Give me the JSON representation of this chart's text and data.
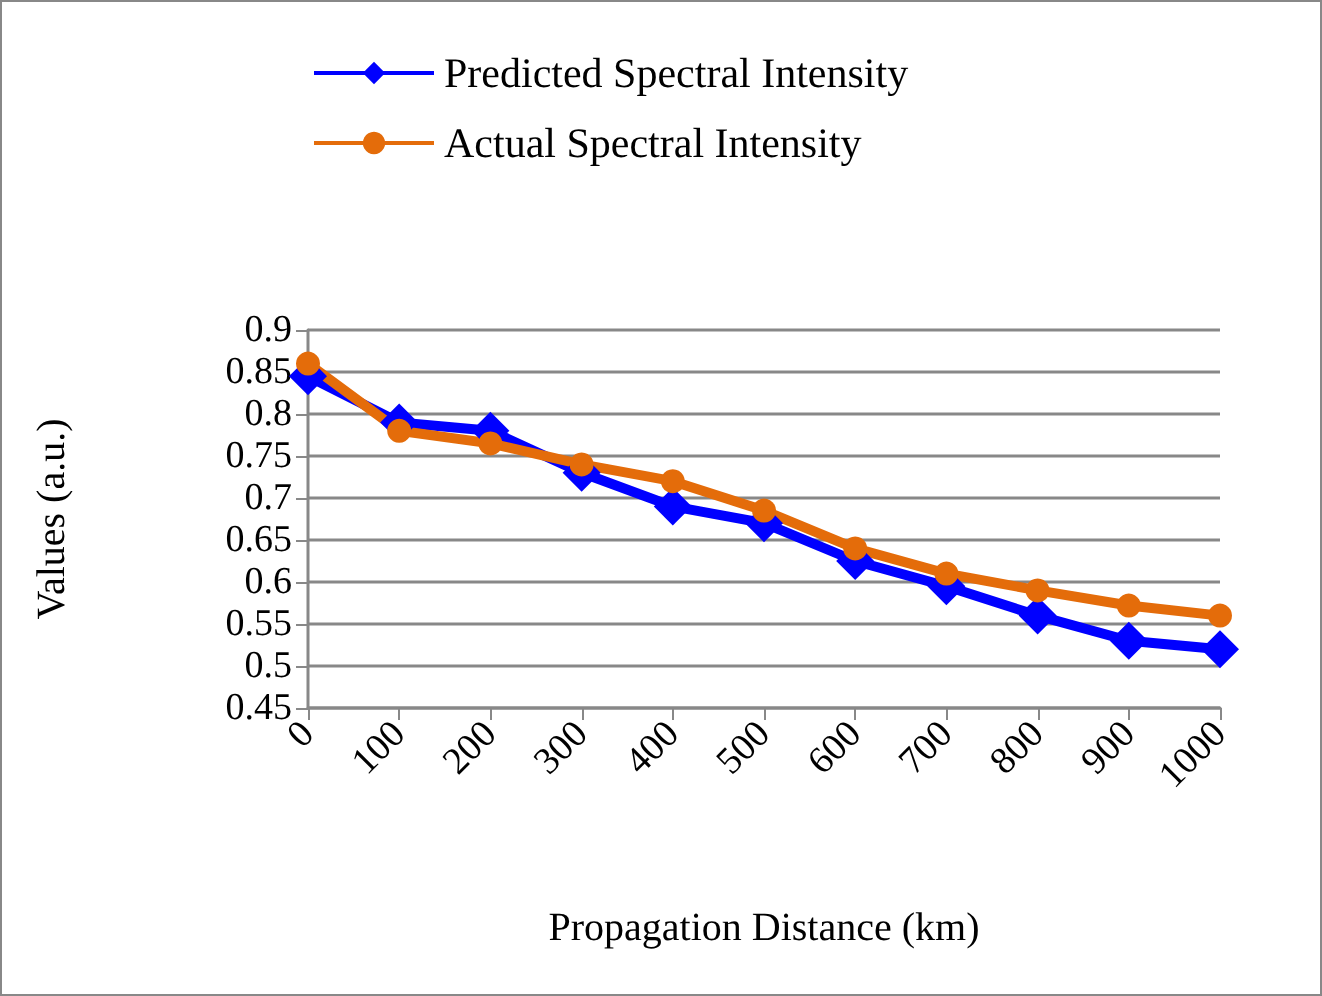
{
  "chart_data": {
    "type": "line",
    "xlabel": "Propagation Distance (km)",
    "ylabel": "Values (a.u.)",
    "categories": [
      "0",
      "100",
      "200",
      "300",
      "400",
      "500",
      "600",
      "700",
      "800",
      "900",
      "1000"
    ],
    "series": [
      {
        "name": "Predicted Spectral Intensity",
        "color": "#0000ff",
        "marker": "diamond",
        "values": [
          0.845,
          0.79,
          0.78,
          0.73,
          0.69,
          0.67,
          0.625,
          0.595,
          0.56,
          0.53,
          0.52
        ]
      },
      {
        "name": "Actual Spectral Intensity",
        "color": "#e46c0a",
        "marker": "circle",
        "values": [
          0.86,
          0.78,
          0.765,
          0.74,
          0.72,
          0.685,
          0.64,
          0.61,
          0.59,
          0.572,
          0.56
        ]
      }
    ],
    "ylim": [
      0.45,
      0.9
    ],
    "yticks": [
      0.45,
      0.5,
      0.55,
      0.6,
      0.65,
      0.7,
      0.75,
      0.8,
      0.85,
      0.9
    ],
    "grid": "y",
    "legend": "top left",
    "line_style": "solid"
  }
}
